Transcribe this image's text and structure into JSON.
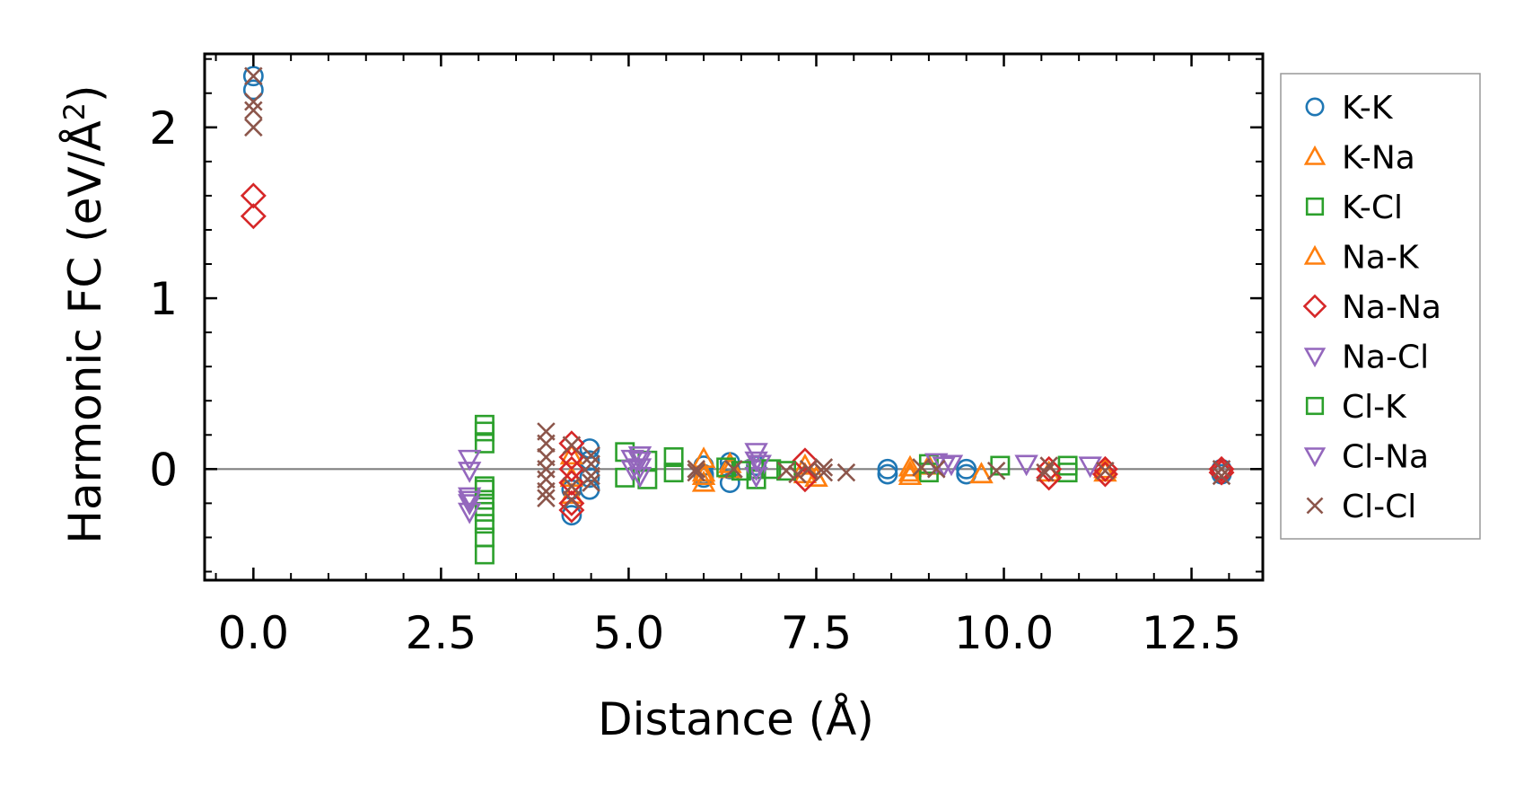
{
  "chart_data": {
    "type": "scatter",
    "title": "",
    "xlabel": "Distance (Å)",
    "ylabel_main": "Harmonic FC (eV/Å",
    "ylabel_sup": "2",
    "ylabel_close": ")",
    "xlim": [
      -0.65,
      13.45
    ],
    "ylim": [
      -0.65,
      2.43
    ],
    "xticks": [
      0.0,
      2.5,
      5.0,
      7.5,
      10.0,
      12.5
    ],
    "xtick_labels": [
      "0.0",
      "2.5",
      "5.0",
      "7.5",
      "10.0",
      "12.5"
    ],
    "yticks": [
      0,
      1,
      2
    ],
    "ytick_labels": [
      "0",
      "1",
      "2"
    ],
    "x_minor_step": 0.5,
    "y_minor_step": 0.2,
    "zero_line": true,
    "legend_position": "outside-right",
    "series": [
      {
        "name": "K-K",
        "marker": "circle",
        "color": "#1f77b4",
        "points": [
          [
            0,
            2.3
          ],
          [
            0,
            2.22
          ],
          [
            4.24,
            -0.27
          ],
          [
            4.24,
            -0.12
          ],
          [
            4.48,
            0.12
          ],
          [
            4.48,
            0.05
          ],
          [
            4.48,
            -0.05
          ],
          [
            4.48,
            -0.12
          ],
          [
            6.0,
            -0.03
          ],
          [
            6.0,
            0.02
          ],
          [
            6.0,
            -0.05
          ],
          [
            6.35,
            0.0
          ],
          [
            6.35,
            0.04
          ],
          [
            6.35,
            -0.08
          ],
          [
            6.7,
            0.02
          ],
          [
            8.45,
            0.0
          ],
          [
            8.45,
            -0.03
          ],
          [
            9.5,
            0.0
          ],
          [
            9.5,
            -0.03
          ],
          [
            12.9,
            0.0
          ],
          [
            12.9,
            -0.03
          ]
        ]
      },
      {
        "name": "K-Na",
        "marker": "triangle-up",
        "color": "#ff7f0e",
        "points": [
          [
            4.24,
            0.08
          ],
          [
            4.24,
            -0.05
          ],
          [
            4.24,
            -0.15
          ],
          [
            6.0,
            0.06
          ],
          [
            6.0,
            -0.02
          ],
          [
            6.0,
            -0.08
          ],
          [
            6.35,
            0.03
          ],
          [
            7.35,
            0.02
          ],
          [
            7.35,
            -0.03
          ],
          [
            7.5,
            -0.05
          ],
          [
            8.75,
            -0.02
          ],
          [
            8.75,
            0.01
          ],
          [
            9.0,
            0.02
          ],
          [
            9.7,
            -0.03
          ],
          [
            10.6,
            -0.02
          ],
          [
            11.35,
            0.0
          ]
        ]
      },
      {
        "name": "K-Cl",
        "marker": "square",
        "color": "#2ca02c",
        "points": [
          [
            3.08,
            0.22
          ],
          [
            3.08,
            0.15
          ],
          [
            3.08,
            -0.12
          ],
          [
            3.08,
            -0.18
          ],
          [
            3.08,
            -0.25
          ],
          [
            3.08,
            -0.32
          ],
          [
            3.08,
            -0.4
          ],
          [
            3.08,
            -0.5
          ],
          [
            4.95,
            0.1
          ],
          [
            4.95,
            -0.05
          ],
          [
            5.25,
            0.05
          ],
          [
            5.25,
            -0.06
          ],
          [
            5.6,
            0.07
          ],
          [
            5.6,
            -0.02
          ],
          [
            6.7,
            0.0
          ],
          [
            6.7,
            -0.06
          ],
          [
            9.0,
            0.03
          ],
          [
            9.0,
            -0.02
          ],
          [
            9.95,
            0.02
          ],
          [
            10.85,
            0.02
          ],
          [
            10.85,
            -0.02
          ]
        ]
      },
      {
        "name": "Na-K",
        "marker": "triangle-up",
        "color": "#ff7f0e",
        "points": [
          [
            6.0,
            -0.04
          ],
          [
            6.35,
            0.0
          ],
          [
            7.5,
            -0.05
          ],
          [
            8.75,
            -0.04
          ],
          [
            9.7,
            -0.03
          ],
          [
            11.35,
            -0.02
          ]
        ]
      },
      {
        "name": "Na-Na",
        "marker": "diamond",
        "color": "#d62728",
        "points": [
          [
            0,
            1.6
          ],
          [
            0,
            1.48
          ],
          [
            4.24,
            0.15
          ],
          [
            4.24,
            0.07
          ],
          [
            4.24,
            0.0
          ],
          [
            4.24,
            -0.08
          ],
          [
            4.24,
            -0.2
          ],
          [
            4.24,
            -0.24
          ],
          [
            7.35,
            0.05
          ],
          [
            7.35,
            -0.06
          ],
          [
            10.6,
            0.0
          ],
          [
            10.6,
            -0.05
          ],
          [
            11.35,
            0.0
          ],
          [
            11.35,
            -0.03
          ],
          [
            12.9,
            0.0
          ],
          [
            12.9,
            -0.02
          ]
        ]
      },
      {
        "name": "Na-Cl",
        "marker": "triangle-down",
        "color": "#9467bd",
        "points": [
          [
            2.88,
            0.06
          ],
          [
            2.88,
            -0.01
          ],
          [
            2.88,
            -0.16
          ],
          [
            2.88,
            -0.2
          ],
          [
            2.88,
            -0.25
          ],
          [
            5.15,
            0.08
          ],
          [
            5.15,
            0.05
          ],
          [
            5.15,
            0.01
          ],
          [
            5.15,
            -0.04
          ],
          [
            6.7,
            0.1
          ],
          [
            6.7,
            0.05
          ],
          [
            6.7,
            0.0
          ],
          [
            6.7,
            -0.04
          ],
          [
            9.1,
            0.04
          ],
          [
            9.3,
            0.03
          ],
          [
            10.3,
            0.03
          ],
          [
            11.15,
            0.02
          ]
        ]
      },
      {
        "name": "Cl-K",
        "marker": "square",
        "color": "#2ca02c",
        "points": [
          [
            3.08,
            0.26
          ],
          [
            3.08,
            -0.1
          ],
          [
            6.3,
            0.01
          ],
          [
            6.5,
            -0.01
          ],
          [
            6.9,
            0.0
          ],
          [
            7.1,
            -0.01
          ]
        ]
      },
      {
        "name": "Cl-Na",
        "marker": "triangle-down",
        "color": "#9467bd",
        "points": [
          [
            2.88,
            -0.18
          ],
          [
            5.05,
            0.0
          ],
          [
            5.05,
            0.06
          ],
          [
            6.75,
            0.03
          ],
          [
            9.2,
            0.02
          ]
        ]
      },
      {
        "name": "Cl-Cl",
        "marker": "x",
        "color": "#8c564b",
        "points": [
          [
            0,
            2.3
          ],
          [
            0,
            2.15
          ],
          [
            0,
            2.1
          ],
          [
            0,
            2.0
          ],
          [
            3.9,
            0.22
          ],
          [
            3.9,
            0.15
          ],
          [
            3.9,
            0.07
          ],
          [
            3.9,
            0.0
          ],
          [
            3.9,
            -0.06
          ],
          [
            3.9,
            -0.13
          ],
          [
            3.9,
            -0.17
          ],
          [
            4.24,
            0.14
          ],
          [
            4.24,
            -0.1
          ],
          [
            4.24,
            -0.18
          ],
          [
            4.5,
            0.08
          ],
          [
            4.5,
            0.03
          ],
          [
            4.5,
            -0.04
          ],
          [
            4.5,
            -0.08
          ],
          [
            5.9,
            0.0
          ],
          [
            5.9,
            -0.02
          ],
          [
            6.4,
            0.0
          ],
          [
            7.1,
            -0.01
          ],
          [
            7.25,
            -0.03
          ],
          [
            7.4,
            0.0
          ],
          [
            7.6,
            0.01
          ],
          [
            7.6,
            -0.02
          ],
          [
            7.9,
            -0.02
          ],
          [
            8.9,
            0.01
          ],
          [
            9.1,
            0.0
          ],
          [
            9.9,
            -0.01
          ],
          [
            10.55,
            -0.02
          ],
          [
            10.6,
            0.02
          ],
          [
            11.35,
            -0.01
          ],
          [
            12.9,
            -0.04
          ],
          [
            12.9,
            0.0
          ]
        ]
      }
    ]
  }
}
